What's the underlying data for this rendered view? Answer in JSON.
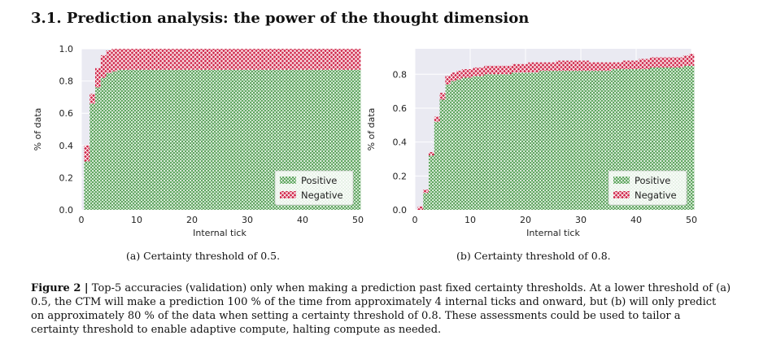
{
  "section_title": "3.1. Prediction analysis: the power of the thought dimension",
  "captions": {
    "a": "(a) Certainty threshold of 0.5.",
    "b": "(b) Certainty threshold of 0.8."
  },
  "figure_caption": {
    "label": "Figure 2 |",
    "text": " Top-5 accuracies (validation) only when making a prediction past fixed certainty thresholds. At a lower threshold of (a) 0.5, the CTM will make a prediction 100 % of the time from approximately 4 internal ticks and onward, but (b) will only predict on approximately 80 % of the data when setting a certainty threshold of 0.8. These assessments could be used to tailor a certainty threshold to enable adaptive compute, halting compute as needed."
  },
  "colors": {
    "positive": "#2e8b2e",
    "negative": "#d0264a",
    "plot_background": "#eaeaf2",
    "grid": "#ffffff"
  },
  "chart_data": [
    {
      "type": "bar",
      "stacked": true,
      "xlabel": "Internal tick",
      "ylabel": "% of data",
      "xlim": [
        0,
        50
      ],
      "ylim": [
        0,
        1.0
      ],
      "xticks": [
        0,
        10,
        20,
        30,
        40,
        50
      ],
      "yticks": [
        0.0,
        0.2,
        0.4,
        0.6,
        0.8,
        1.0
      ],
      "grid": true,
      "legend": "lower-right",
      "x": [
        1,
        2,
        3,
        4,
        5,
        6,
        7,
        8,
        9,
        10,
        11,
        12,
        13,
        14,
        15,
        16,
        17,
        18,
        19,
        20,
        21,
        22,
        23,
        24,
        25,
        26,
        27,
        28,
        29,
        30,
        31,
        32,
        33,
        34,
        35,
        36,
        37,
        38,
        39,
        40,
        41,
        42,
        43,
        44,
        45,
        46,
        47,
        48,
        49,
        50
      ],
      "series": [
        {
          "name": "Positive",
          "pattern": "circles",
          "values": [
            0.3,
            0.66,
            0.76,
            0.82,
            0.85,
            0.86,
            0.87,
            0.87,
            0.87,
            0.87,
            0.87,
            0.87,
            0.87,
            0.87,
            0.87,
            0.87,
            0.87,
            0.87,
            0.87,
            0.87,
            0.87,
            0.87,
            0.87,
            0.87,
            0.87,
            0.87,
            0.87,
            0.87,
            0.87,
            0.87,
            0.87,
            0.87,
            0.87,
            0.87,
            0.87,
            0.87,
            0.87,
            0.87,
            0.87,
            0.87,
            0.87,
            0.87,
            0.87,
            0.87,
            0.87,
            0.87,
            0.87,
            0.87,
            0.87,
            0.87
          ]
        },
        {
          "name": "Negative",
          "pattern": "crosses",
          "values": [
            0.1,
            0.06,
            0.12,
            0.14,
            0.14,
            0.14,
            0.13,
            0.13,
            0.13,
            0.13,
            0.13,
            0.13,
            0.13,
            0.13,
            0.13,
            0.13,
            0.13,
            0.13,
            0.13,
            0.13,
            0.13,
            0.13,
            0.13,
            0.13,
            0.13,
            0.13,
            0.13,
            0.13,
            0.13,
            0.13,
            0.13,
            0.13,
            0.13,
            0.13,
            0.13,
            0.13,
            0.13,
            0.13,
            0.13,
            0.13,
            0.13,
            0.13,
            0.13,
            0.13,
            0.13,
            0.13,
            0.13,
            0.13,
            0.13,
            0.13
          ]
        }
      ]
    },
    {
      "type": "bar",
      "stacked": true,
      "xlabel": "Internal tick",
      "ylabel": "% of data",
      "xlim": [
        0,
        50
      ],
      "ylim": [
        0,
        0.95
      ],
      "xticks": [
        0,
        10,
        20,
        30,
        40,
        50
      ],
      "yticks": [
        0.0,
        0.2,
        0.4,
        0.6,
        0.8
      ],
      "grid": true,
      "legend": "lower-right",
      "x": [
        1,
        2,
        3,
        4,
        5,
        6,
        7,
        8,
        9,
        10,
        11,
        12,
        13,
        14,
        15,
        16,
        17,
        18,
        19,
        20,
        21,
        22,
        23,
        24,
        25,
        26,
        27,
        28,
        29,
        30,
        31,
        32,
        33,
        34,
        35,
        36,
        37,
        38,
        39,
        40,
        41,
        42,
        43,
        44,
        45,
        46,
        47,
        48,
        49,
        50
      ],
      "series": [
        {
          "name": "Positive",
          "pattern": "circles",
          "values": [
            0.0,
            0.1,
            0.32,
            0.52,
            0.65,
            0.74,
            0.76,
            0.77,
            0.78,
            0.78,
            0.79,
            0.79,
            0.8,
            0.8,
            0.8,
            0.8,
            0.8,
            0.81,
            0.81,
            0.81,
            0.81,
            0.81,
            0.82,
            0.82,
            0.82,
            0.82,
            0.82,
            0.82,
            0.82,
            0.82,
            0.82,
            0.82,
            0.82,
            0.82,
            0.82,
            0.83,
            0.83,
            0.83,
            0.83,
            0.83,
            0.83,
            0.83,
            0.84,
            0.84,
            0.84,
            0.84,
            0.84,
            0.84,
            0.85,
            0.85
          ]
        },
        {
          "name": "Negative",
          "pattern": "crosses",
          "values": [
            0.02,
            0.02,
            0.02,
            0.03,
            0.04,
            0.05,
            0.05,
            0.05,
            0.05,
            0.05,
            0.05,
            0.05,
            0.05,
            0.05,
            0.05,
            0.05,
            0.05,
            0.05,
            0.05,
            0.05,
            0.06,
            0.06,
            0.05,
            0.05,
            0.05,
            0.06,
            0.06,
            0.06,
            0.06,
            0.06,
            0.06,
            0.05,
            0.05,
            0.05,
            0.05,
            0.04,
            0.04,
            0.05,
            0.05,
            0.05,
            0.06,
            0.06,
            0.06,
            0.06,
            0.06,
            0.06,
            0.06,
            0.06,
            0.06,
            0.07
          ]
        }
      ]
    }
  ]
}
